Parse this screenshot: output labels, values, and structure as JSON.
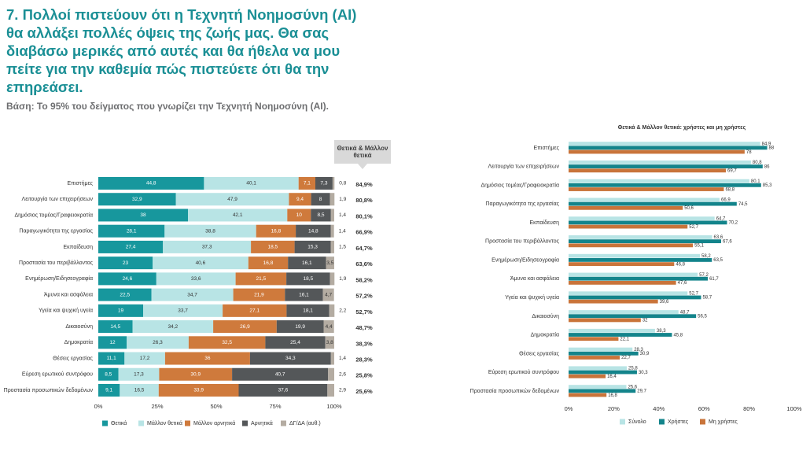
{
  "title": "7. Πολλοί πιστεύουν ότι η Τεχνητή Νοημοσύνη (AI) θα αλλάξει πολλές όψεις της ζωής μας. Θα σας διαβάσω μερικές από αυτές και θα ήθελα να μου πείτε για την καθεμία πώς πιστεύετε ότι θα την επηρεάσει.",
  "subtitle": "Βάση: Το 95% του δείγματος που γνωρίζει την Τεχνητή Νοημοσύνη (AI).",
  "chart_data": [
    {
      "type": "stacked_bar",
      "categories": [
        "Επιστήμες",
        "Λειτουργία των επιχειρήσεων",
        "Δημόσιος τομέας/Γραφειοκρατία",
        "Παραγωγικότητα της εργασίας",
        "Εκπαίδευση",
        "Προστασία του περιβάλλοντος",
        "Ενημέρωση/Ειδησεογραφία",
        "Άμυνα και ασφάλεια",
        "Υγεία και ψυχική υγεία",
        "Δικαιοσύνη",
        "Δημοκρατία",
        "Θέσεις εργασίας",
        "Εύρεση ερωτικού συντρόφου",
        "Προστασία προσωπικών δεδομένων"
      ],
      "series": [
        {
          "name": "Θετικά",
          "color": "#17979d",
          "values": [
            44.8,
            32.9,
            38,
            28.1,
            27.4,
            23,
            24.6,
            22.5,
            19,
            14.5,
            12,
            11.1,
            8.5,
            9.1
          ],
          "value_labels": [
            "44,8",
            "32,9",
            "38",
            "28,1",
            "27,4",
            "23",
            "24,6",
            "22,5",
            "19",
            "14,5",
            "12",
            "11,1",
            "8,5",
            "9,1"
          ]
        },
        {
          "name": "Μάλλον θετικά",
          "color": "#b8e4e5",
          "values": [
            40.1,
            47.9,
            42.1,
            38.8,
            37.3,
            40.6,
            33.6,
            34.7,
            33.7,
            34.2,
            26.3,
            17.2,
            17.3,
            16.5
          ],
          "value_labels": [
            "40,1",
            "47,9",
            "42,1",
            "38,8",
            "37,3",
            "40,6",
            "33,6",
            "34,7",
            "33,7",
            "34,2",
            "26,3",
            "17,2",
            "17,3",
            "16,5"
          ]
        },
        {
          "name": "Μάλλον αρνητικά",
          "color": "#cf7a3c",
          "values": [
            7.1,
            9.4,
            10,
            16.8,
            18.5,
            16.8,
            21.5,
            21.9,
            27.1,
            26.9,
            32.5,
            36,
            30.9,
            33.9
          ],
          "value_labels": [
            "7,1",
            "9,4",
            "10",
            "16,8",
            "18,5",
            "16,8",
            "21,5",
            "21,9",
            "27,1",
            "26,9",
            "32,5",
            "36",
            "30,9",
            "33,9"
          ]
        },
        {
          "name": "Αρνητικά",
          "color": "#545759",
          "values": [
            7.3,
            8,
            8.5,
            14.8,
            15.3,
            16.1,
            18.5,
            16.1,
            18.1,
            19.9,
            25.4,
            34.3,
            40.7,
            37.6
          ],
          "value_labels": [
            "7,3",
            "8",
            "8,5",
            "14,8",
            "15,3",
            "16,1",
            "18,5",
            "16,1",
            "18,1",
            "19,9",
            "25,4",
            "34,3",
            "40,7",
            "37,6"
          ]
        },
        {
          "name": "ΔΓ/ΔΑ (αυθ.)",
          "color": "#b4aca2",
          "values": [
            0.8,
            1.9,
            1.4,
            1.4,
            1.5,
            3.5,
            1.9,
            4.7,
            2.2,
            4.4,
            3.8,
            1.4,
            2.6,
            2.9
          ],
          "value_labels": [
            "0,8",
            "1,9",
            "1,4",
            "1,4",
            "1,5",
            "3,5",
            "1,9",
            "4,7",
            "2,2",
            "4,4",
            "3,8",
            "1,4",
            "2,6",
            "2,9"
          ]
        }
      ],
      "totals": {
        "name": "Θετικά & Μάλλον θετικά",
        "values": [
          84.9,
          80.8,
          80.1,
          66.9,
          64.7,
          63.6,
          58.2,
          57.2,
          52.7,
          48.7,
          38.3,
          28.3,
          25.8,
          25.6
        ],
        "value_labels": [
          "84,9%",
          "80,8%",
          "80,1%",
          "66,9%",
          "64,7%",
          "63,6%",
          "58,2%",
          "57,2%",
          "52,7%",
          "48,7%",
          "38,3%",
          "28,3%",
          "25,8%",
          "25,6%"
        ]
      },
      "xlim": [
        0,
        100
      ],
      "xticks": [
        {
          "value": 0,
          "label": "0%"
        },
        {
          "value": 25,
          "label": "25%"
        },
        {
          "value": 50,
          "label": "50%"
        },
        {
          "value": 75,
          "label": "75%"
        },
        {
          "value": 100,
          "label": "100%"
        }
      ],
      "legend": "bottom"
    },
    {
      "type": "grouped_bar",
      "title": "Θετικά & Μάλλον θετικά: χρήστες  και μη χρήστες",
      "categories": [
        "Επιστήμες",
        "Λειτουργία των επιχειρήσεων",
        "Δημόσιος τομέας/Γραφειοκρατία",
        "Παραγωγικότητα της εργασίας",
        "Εκπαίδευση",
        "Προστασία του περιβάλλοντος",
        "Ενημέρωση/Ειδησεογραφία",
        "Άμυνα και ασφάλεια",
        "Υγεία και ψυχική υγεία",
        "Δικαιοσύνη",
        "Δημοκρατία",
        "Θέσεις εργασίας",
        "Εύρεση ερωτικού συντρόφου",
        "Προστασία προσωπικών δεδομένων"
      ],
      "series": [
        {
          "name": "Σύνολο",
          "color": "#b8e4e5",
          "values": [
            84.9,
            80.8,
            80.1,
            66.9,
            64.7,
            63.6,
            58.2,
            57.2,
            52.7,
            48.7,
            38.3,
            28.3,
            25.8,
            25.6
          ],
          "value_labels": [
            "84,9",
            "80,8",
            "80,1",
            "66,9",
            "64,7",
            "63,6",
            "58,2",
            "57,2",
            "52,7",
            "48,7",
            "38,3",
            "28,3",
            "25,8",
            "25,6"
          ]
        },
        {
          "name": "Χρήστες",
          "color": "#13848b",
          "values": [
            88,
            86,
            85.3,
            74.5,
            70.2,
            67.6,
            63.5,
            61.7,
            58.7,
            56.5,
            45.8,
            30.9,
            30.3,
            29.7
          ],
          "value_labels": [
            "88",
            "86",
            "85,3",
            "74,5",
            "70,2",
            "67,6",
            "63,5",
            "61,7",
            "58,7",
            "56,5",
            "45,8",
            "30,9",
            "30,3",
            "29,7"
          ]
        },
        {
          "name": "Μη χρήστες",
          "color": "#c9743a",
          "values": [
            78,
            69.7,
            68.8,
            50.6,
            52.7,
            55.1,
            46.8,
            47.6,
            39.6,
            32,
            22.1,
            22.7,
            16.4,
            16.8
          ],
          "value_labels": [
            "78",
            "69,7",
            "68,8",
            "50,6",
            "52,7",
            "55,1",
            "46,8",
            "47,6",
            "39,6",
            "32",
            "22,1",
            "22,7",
            "16,4",
            "16,8"
          ]
        }
      ],
      "xlim": [
        0,
        100
      ],
      "xticks": [
        {
          "value": 0,
          "label": "0%"
        },
        {
          "value": 20,
          "label": "20%"
        },
        {
          "value": 40,
          "label": "40%"
        },
        {
          "value": 60,
          "label": "60%"
        },
        {
          "value": 80,
          "label": "80%"
        },
        {
          "value": 100,
          "label": "100%"
        }
      ],
      "legend": "bottom"
    }
  ]
}
